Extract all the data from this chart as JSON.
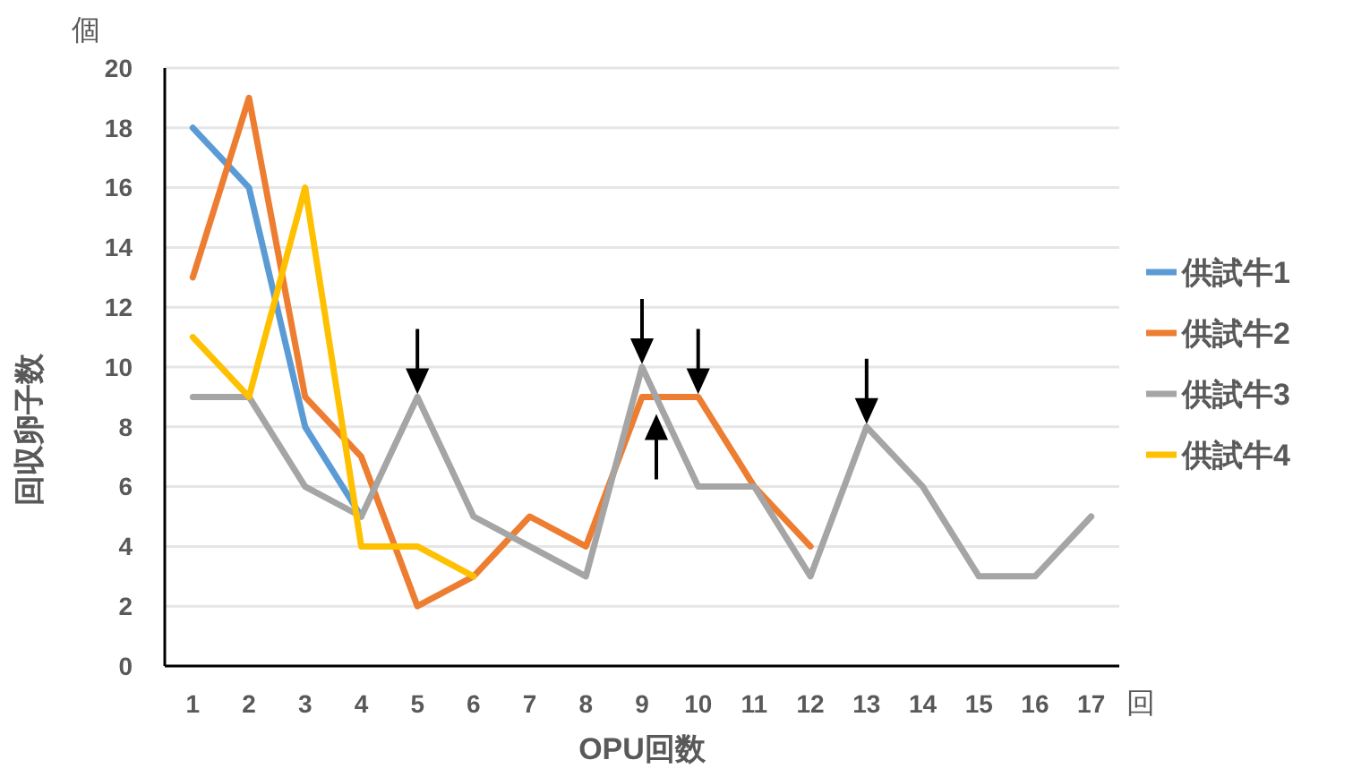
{
  "chart_data": {
    "type": "line",
    "ylabel": "回収卵子数",
    "xlabel": "OPU回数",
    "categories": [
      "1",
      "2",
      "3",
      "4",
      "5",
      "6",
      "7",
      "8",
      "9",
      "10",
      "11",
      "12",
      "13",
      "14",
      "15",
      "16",
      "17"
    ],
    "series": [
      {
        "name": "供試牛1",
        "color": "#5b9bd5",
        "values": [
          18,
          16,
          8,
          5,
          null,
          null,
          null,
          null,
          null,
          null,
          null,
          null,
          null,
          null,
          null,
          null,
          null
        ]
      },
      {
        "name": "供試牛2",
        "color": "#ed7d31",
        "values": [
          13,
          19,
          9,
          7,
          2,
          3,
          5,
          4,
          9,
          9,
          6,
          4,
          null,
          null,
          null,
          null,
          null
        ]
      },
      {
        "name": "供試牛3",
        "color": "#a5a5a5",
        "values": [
          9,
          9,
          6,
          5,
          9,
          5,
          4,
          3,
          10,
          6,
          6,
          3,
          8,
          6,
          3,
          3,
          5
        ]
      },
      {
        "name": "供試牛4",
        "color": "#ffc000",
        "values": [
          11,
          9,
          16,
          4,
          4,
          3,
          null,
          null,
          null,
          null,
          null,
          null,
          null,
          null,
          null,
          null,
          null
        ]
      }
    ],
    "ylim": [
      0,
      20
    ],
    "yticks": [
      0,
      2,
      4,
      6,
      8,
      10,
      12,
      14,
      16,
      18,
      20
    ],
    "grid": "y",
    "legend": "right",
    "marker": "none",
    "line_style": "solid",
    "annotations": [
      "個",
      "回"
    ]
  }
}
